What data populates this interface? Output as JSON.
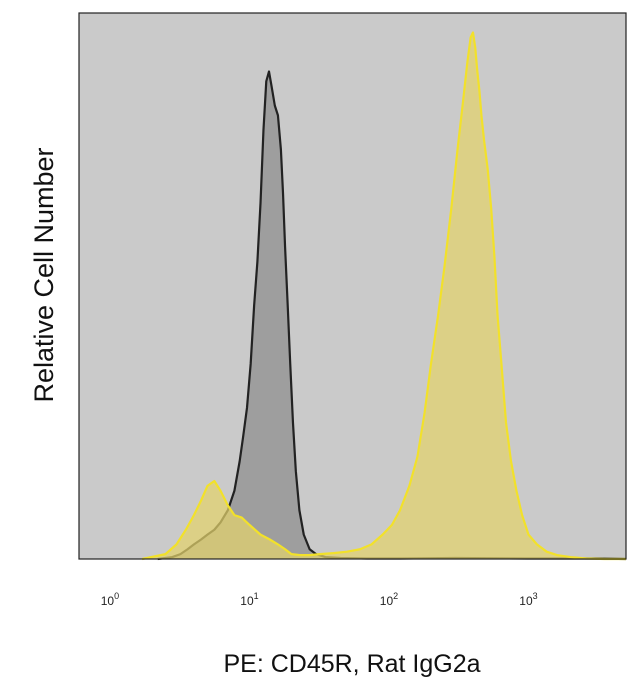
{
  "chart_data": {
    "type": "area",
    "title": "",
    "xlabel": "PE: CD45R, Rat IgG2a",
    "ylabel": "Relative Cell Number",
    "x_scale": "log",
    "xlim": [
      0.6,
      5000
    ],
    "ylim": [
      0,
      1.12
    ],
    "x_ticks": [
      {
        "value": 1,
        "base": "10",
        "exp": "0"
      },
      {
        "value": 10,
        "base": "10",
        "exp": "1"
      },
      {
        "value": 100,
        "base": "10",
        "exp": "2"
      },
      {
        "value": 1000,
        "base": "10",
        "exp": "3"
      }
    ],
    "grid": false,
    "legend": "none",
    "plot_background": "#cacaca",
    "series": [
      {
        "color": "#222222",
        "fill": "#8e8e8e",
        "x": [
          2.2,
          2.8,
          3.2,
          3.6,
          4.0,
          4.5,
          5.0,
          5.6,
          6.2,
          7.0,
          7.8,
          8.5,
          9.0,
          9.6,
          10.2,
          10.8,
          11.4,
          12.0,
          12.6,
          13.2,
          13.8,
          14.4,
          15.2,
          16.0,
          16.8,
          17.4,
          18.0,
          18.8,
          19.6,
          20.5,
          21.5,
          22.8,
          24.5,
          27.0,
          30.0,
          35.0,
          45.0,
          70.0,
          120.0,
          300.0,
          1000.0,
          3000.0,
          5000.0
        ],
        "y": [
          0.0,
          0.004,
          0.01,
          0.02,
          0.03,
          0.04,
          0.05,
          0.06,
          0.075,
          0.1,
          0.14,
          0.2,
          0.25,
          0.31,
          0.4,
          0.52,
          0.61,
          0.73,
          0.88,
          0.98,
          1.0,
          0.97,
          0.93,
          0.91,
          0.84,
          0.75,
          0.64,
          0.52,
          0.4,
          0.28,
          0.18,
          0.1,
          0.05,
          0.02,
          0.01,
          0.004,
          0.002,
          0.001,
          0.001,
          0.002,
          0.001,
          0.001,
          0.0
        ]
      },
      {
        "color": "#f2e12a",
        "fill": "#e3d26c",
        "x": [
          1.7,
          2.5,
          3.0,
          3.5,
          4.0,
          4.5,
          5.0,
          5.6,
          6.2,
          7.0,
          7.8,
          8.8,
          10.0,
          12.0,
          14.0,
          16.0,
          18.0,
          20.0,
          23.0,
          27.0,
          32.0,
          40.0,
          50.0,
          62.0,
          75.0,
          90.0,
          105.0,
          120.0,
          140.0,
          160.0,
          180.0,
          200.0,
          225.0,
          250.0,
          280.0,
          310.0,
          340.0,
          365.0,
          385.0,
          400.0,
          415.0,
          430.0,
          445.0,
          460.0,
          480.0,
          510.0,
          540.0,
          570.0,
          600.0,
          640.0,
          690.0,
          750.0,
          820.0,
          900.0,
          1000.0,
          1150.0,
          1350.0,
          1600.0,
          2000.0,
          2600.0,
          3500.0,
          5000.0
        ],
        "y": [
          0.0,
          0.01,
          0.03,
          0.06,
          0.09,
          0.12,
          0.15,
          0.16,
          0.14,
          0.11,
          0.09,
          0.085,
          0.07,
          0.05,
          0.04,
          0.03,
          0.02,
          0.01,
          0.008,
          0.008,
          0.01,
          0.012,
          0.015,
          0.02,
          0.03,
          0.05,
          0.07,
          0.1,
          0.15,
          0.21,
          0.3,
          0.4,
          0.5,
          0.6,
          0.72,
          0.84,
          0.94,
          1.02,
          1.07,
          1.08,
          1.05,
          1.0,
          0.96,
          0.91,
          0.86,
          0.8,
          0.72,
          0.62,
          0.5,
          0.4,
          0.28,
          0.2,
          0.14,
          0.09,
          0.05,
          0.03,
          0.015,
          0.008,
          0.004,
          0.001,
          0.0,
          0.0
        ]
      }
    ]
  }
}
